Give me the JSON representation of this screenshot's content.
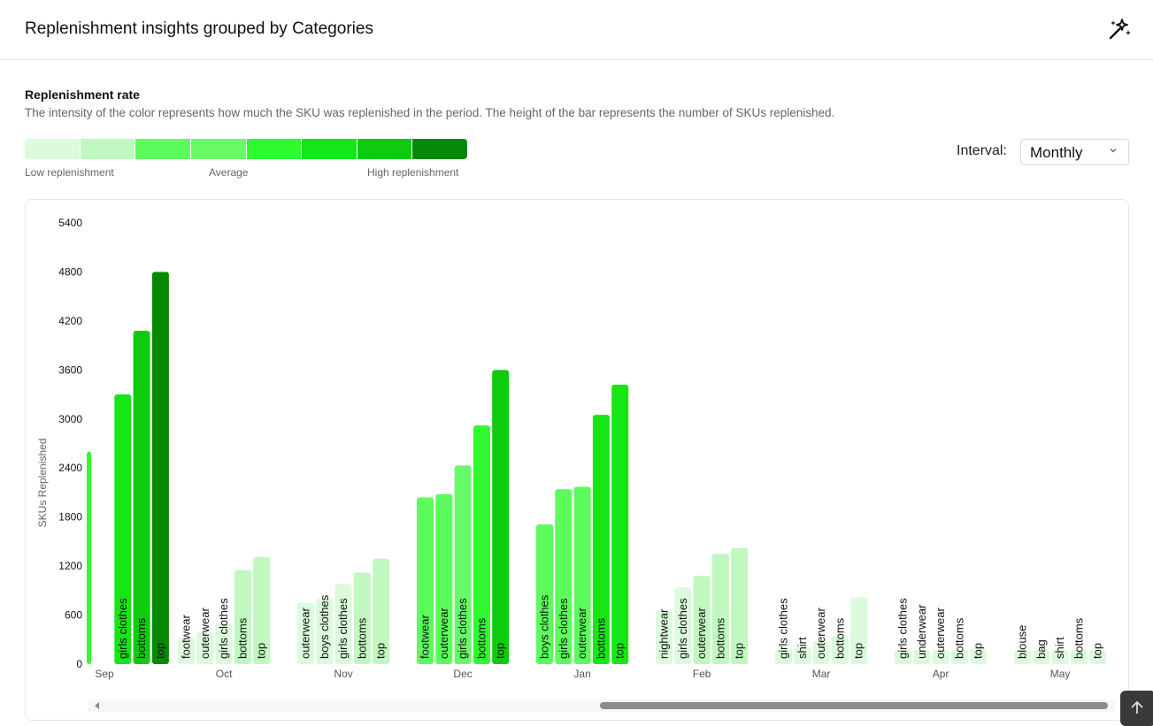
{
  "header": {
    "title": "Replenishment insights grouped by Categories",
    "magic_icon": "sparkles-icon"
  },
  "legend": {
    "title": "Replenishment rate",
    "description": "The intensity of the color represents how much the SKU was replenished in the period. The height of the bar represents the number of SKUs replenished.",
    "colors": [
      "#dcfadc",
      "#c0f8c0",
      "#5dfc5d",
      "#66fb66",
      "#30fb30",
      "#16e616",
      "#0ecb0e",
      "#058905"
    ],
    "low_label": "Low replenishment",
    "avg_label": "Average",
    "high_label": "High replenishment"
  },
  "interval": {
    "label": "Interval:",
    "value": "Monthly"
  },
  "chart_data": {
    "type": "bar",
    "ylabel": "SKUs Replenished",
    "ylim": [
      0,
      5400
    ],
    "yticks": [
      0,
      600,
      1200,
      1800,
      2400,
      3000,
      3600,
      4200,
      4800,
      5400
    ],
    "groups": [
      {
        "month": "Sep",
        "bars": [
          {
            "category": "",
            "value": 2600,
            "level": 4
          },
          {
            "category": "girls clothes",
            "value": 3300,
            "level": 5
          },
          {
            "category": "bottoms",
            "value": 4080,
            "level": 6
          },
          {
            "category": "top",
            "value": 4800,
            "level": 7
          }
        ]
      },
      {
        "month": "Oct",
        "bars": [
          {
            "category": "footwear",
            "value": 320,
            "level": 0
          },
          {
            "category": "outerwear",
            "value": 390,
            "level": 0
          },
          {
            "category": "girls clothes",
            "value": 500,
            "level": 0
          },
          {
            "category": "bottoms",
            "value": 1150,
            "level": 1
          },
          {
            "category": "top",
            "value": 1310,
            "level": 1
          }
        ]
      },
      {
        "month": "Nov",
        "bars": [
          {
            "category": "outerwear",
            "value": 750,
            "level": 0
          },
          {
            "category": "boys clothes",
            "value": 800,
            "level": 0
          },
          {
            "category": "girls clothes",
            "value": 980,
            "level": 0
          },
          {
            "category": "bottoms",
            "value": 1120,
            "level": 1
          },
          {
            "category": "top",
            "value": 1290,
            "level": 1
          }
        ]
      },
      {
        "month": "Dec",
        "bars": [
          {
            "category": "footwear",
            "value": 2040,
            "level": 2
          },
          {
            "category": "outerwear",
            "value": 2080,
            "level": 2
          },
          {
            "category": "girls clothes",
            "value": 2430,
            "level": 3
          },
          {
            "category": "bottoms",
            "value": 2920,
            "level": 4
          },
          {
            "category": "top",
            "value": 3600,
            "level": 6
          }
        ]
      },
      {
        "month": "Jan",
        "bars": [
          {
            "category": "boys clothes",
            "value": 1710,
            "level": 2
          },
          {
            "category": "girls clothes",
            "value": 2140,
            "level": 2
          },
          {
            "category": "outerwear",
            "value": 2170,
            "level": 2
          },
          {
            "category": "bottoms",
            "value": 3050,
            "level": 5
          },
          {
            "category": "top",
            "value": 3420,
            "level": 5
          }
        ]
      },
      {
        "month": "Feb",
        "bars": [
          {
            "category": "nightwear",
            "value": 650,
            "level": 0
          },
          {
            "category": "girls clothes",
            "value": 940,
            "level": 0
          },
          {
            "category": "outerwear",
            "value": 1080,
            "level": 1
          },
          {
            "category": "bottoms",
            "value": 1350,
            "level": 1
          },
          {
            "category": "top",
            "value": 1420,
            "level": 1
          }
        ]
      },
      {
        "month": "Mar",
        "bars": [
          {
            "category": "girls clothes",
            "value": 180,
            "level": 0
          },
          {
            "category": "shirt",
            "value": 210,
            "level": 0
          },
          {
            "category": "outerwear",
            "value": 280,
            "level": 0
          },
          {
            "category": "bottoms",
            "value": 340,
            "level": 0
          },
          {
            "category": "top",
            "value": 820,
            "level": 0
          }
        ]
      },
      {
        "month": "Apr",
        "bars": [
          {
            "category": "girls clothes",
            "value": 110,
            "level": 0
          },
          {
            "category": "underwear",
            "value": 120,
            "level": 0
          },
          {
            "category": "outerwear",
            "value": 130,
            "level": 0
          },
          {
            "category": "bottoms",
            "value": 160,
            "level": 0
          },
          {
            "category": "top",
            "value": 190,
            "level": 0
          }
        ]
      },
      {
        "month": "May",
        "bars": [
          {
            "category": "blouse",
            "value": 90,
            "level": 0
          },
          {
            "category": "bag",
            "value": 100,
            "level": 0
          },
          {
            "category": "shirt",
            "value": 110,
            "level": 0
          },
          {
            "category": "bottoms",
            "value": 120,
            "level": 0
          },
          {
            "category": "top",
            "value": 140,
            "level": 0
          }
        ]
      }
    ]
  }
}
